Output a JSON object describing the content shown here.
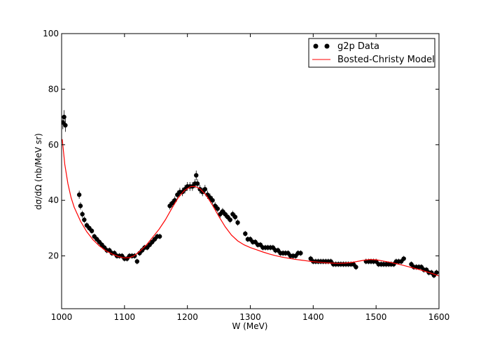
{
  "chart_data": {
    "type": "scatter",
    "xlabel": "W (MeV)",
    "ylabel": "dσ/dΩ (nb/MeV sr)",
    "xlim": [
      1000,
      1600
    ],
    "ylim": [
      1,
      100
    ],
    "x_ticks": [
      1000,
      1100,
      1200,
      1300,
      1400,
      1500,
      1600
    ],
    "y_ticks": [
      20,
      40,
      60,
      80,
      100
    ],
    "grid": false,
    "legend_position": "top-right",
    "series": [
      {
        "name": "g2p Data",
        "style": "points-with-errorbars",
        "color": "#000000",
        "points": [
          [
            1002,
            68
          ],
          [
            1004,
            70
          ],
          [
            1006,
            67
          ],
          [
            1028,
            42
          ],
          [
            1030,
            38
          ],
          [
            1033,
            35
          ],
          [
            1036,
            33
          ],
          [
            1040,
            31
          ],
          [
            1044,
            30
          ],
          [
            1048,
            29
          ],
          [
            1052,
            27
          ],
          [
            1056,
            26
          ],
          [
            1060,
            25
          ],
          [
            1064,
            24
          ],
          [
            1068,
            23
          ],
          [
            1072,
            22
          ],
          [
            1076,
            22
          ],
          [
            1080,
            21
          ],
          [
            1084,
            21
          ],
          [
            1088,
            20
          ],
          [
            1092,
            20
          ],
          [
            1096,
            20
          ],
          [
            1100,
            19
          ],
          [
            1104,
            19
          ],
          [
            1108,
            20
          ],
          [
            1112,
            20
          ],
          [
            1116,
            20
          ],
          [
            1120,
            18
          ],
          [
            1124,
            21
          ],
          [
            1128,
            22
          ],
          [
            1132,
            23
          ],
          [
            1136,
            23
          ],
          [
            1140,
            24
          ],
          [
            1144,
            25
          ],
          [
            1148,
            26
          ],
          [
            1152,
            27
          ],
          [
            1156,
            27
          ],
          [
            1172,
            38
          ],
          [
            1176,
            39
          ],
          [
            1180,
            40
          ],
          [
            1184,
            42
          ],
          [
            1188,
            43
          ],
          [
            1192,
            43
          ],
          [
            1196,
            44
          ],
          [
            1200,
            45
          ],
          [
            1204,
            45
          ],
          [
            1208,
            45
          ],
          [
            1212,
            46
          ],
          [
            1214,
            49
          ],
          [
            1216,
            46
          ],
          [
            1220,
            44
          ],
          [
            1224,
            43
          ],
          [
            1228,
            44
          ],
          [
            1232,
            42
          ],
          [
            1236,
            41
          ],
          [
            1240,
            40
          ],
          [
            1244,
            38
          ],
          [
            1248,
            37
          ],
          [
            1252,
            35
          ],
          [
            1256,
            36
          ],
          [
            1260,
            35
          ],
          [
            1264,
            34
          ],
          [
            1268,
            33
          ],
          [
            1272,
            35
          ],
          [
            1276,
            34
          ],
          [
            1280,
            32
          ],
          [
            1292,
            28
          ],
          [
            1296,
            26
          ],
          [
            1300,
            26
          ],
          [
            1304,
            25
          ],
          [
            1308,
            25
          ],
          [
            1312,
            24
          ],
          [
            1316,
            24
          ],
          [
            1320,
            23
          ],
          [
            1324,
            23
          ],
          [
            1328,
            23
          ],
          [
            1332,
            23
          ],
          [
            1336,
            23
          ],
          [
            1340,
            22
          ],
          [
            1344,
            22
          ],
          [
            1348,
            21
          ],
          [
            1352,
            21
          ],
          [
            1356,
            21
          ],
          [
            1360,
            21
          ],
          [
            1364,
            20
          ],
          [
            1368,
            20
          ],
          [
            1372,
            20
          ],
          [
            1376,
            21
          ],
          [
            1380,
            21
          ],
          [
            1396,
            19
          ],
          [
            1400,
            18
          ],
          [
            1404,
            18
          ],
          [
            1408,
            18
          ],
          [
            1412,
            18
          ],
          [
            1416,
            18
          ],
          [
            1420,
            18
          ],
          [
            1424,
            18
          ],
          [
            1428,
            18
          ],
          [
            1432,
            17
          ],
          [
            1436,
            17
          ],
          [
            1440,
            17
          ],
          [
            1444,
            17
          ],
          [
            1448,
            17
          ],
          [
            1452,
            17
          ],
          [
            1456,
            17
          ],
          [
            1460,
            17
          ],
          [
            1464,
            17
          ],
          [
            1468,
            16
          ],
          [
            1484,
            18
          ],
          [
            1488,
            18
          ],
          [
            1492,
            18
          ],
          [
            1496,
            18
          ],
          [
            1500,
            18
          ],
          [
            1504,
            17
          ],
          [
            1508,
            17
          ],
          [
            1512,
            17
          ],
          [
            1516,
            17
          ],
          [
            1520,
            17
          ],
          [
            1524,
            17
          ],
          [
            1528,
            17
          ],
          [
            1532,
            18
          ],
          [
            1536,
            18
          ],
          [
            1540,
            18
          ],
          [
            1544,
            19
          ],
          [
            1556,
            17
          ],
          [
            1560,
            16
          ],
          [
            1564,
            16
          ],
          [
            1568,
            16
          ],
          [
            1572,
            16
          ],
          [
            1576,
            15
          ],
          [
            1580,
            15
          ],
          [
            1584,
            14
          ],
          [
            1588,
            14
          ],
          [
            1592,
            13
          ],
          [
            1596,
            14
          ]
        ]
      },
      {
        "name": "Bosted-Christy Model",
        "style": "line",
        "color": "#ff0000",
        "points": [
          [
            1001,
            62
          ],
          [
            1005,
            53
          ],
          [
            1010,
            46
          ],
          [
            1015,
            41
          ],
          [
            1020,
            37.5
          ],
          [
            1030,
            32.5
          ],
          [
            1040,
            28.7
          ],
          [
            1050,
            25.8
          ],
          [
            1060,
            23.6
          ],
          [
            1070,
            21.9
          ],
          [
            1080,
            20.7
          ],
          [
            1090,
            19.8
          ],
          [
            1100,
            19.3
          ],
          [
            1108,
            19.4
          ],
          [
            1115,
            20.0
          ],
          [
            1125,
            21.8
          ],
          [
            1135,
            24.0
          ],
          [
            1145,
            26.8
          ],
          [
            1155,
            29.6
          ],
          [
            1165,
            33.0
          ],
          [
            1175,
            37.0
          ],
          [
            1185,
            40.8
          ],
          [
            1195,
            43.5
          ],
          [
            1205,
            44.9
          ],
          [
            1212,
            45.0
          ],
          [
            1220,
            44.2
          ],
          [
            1230,
            41.8
          ],
          [
            1240,
            38.2
          ],
          [
            1250,
            34.2
          ],
          [
            1260,
            30.5
          ],
          [
            1270,
            27.5
          ],
          [
            1280,
            25.4
          ],
          [
            1290,
            24.0
          ],
          [
            1300,
            23.0
          ],
          [
            1310,
            22.2
          ],
          [
            1320,
            21.4
          ],
          [
            1330,
            20.7
          ],
          [
            1340,
            20.1
          ],
          [
            1350,
            19.6
          ],
          [
            1360,
            19.2
          ],
          [
            1370,
            18.8
          ],
          [
            1380,
            18.5
          ],
          [
            1390,
            18.2
          ],
          [
            1400,
            17.9
          ],
          [
            1410,
            17.7
          ],
          [
            1420,
            17.5
          ],
          [
            1430,
            17.4
          ],
          [
            1440,
            17.3
          ],
          [
            1450,
            17.4
          ],
          [
            1460,
            17.6
          ],
          [
            1470,
            18.0
          ],
          [
            1480,
            18.4
          ],
          [
            1490,
            18.7
          ],
          [
            1500,
            18.6
          ],
          [
            1510,
            18.2
          ],
          [
            1520,
            17.8
          ],
          [
            1530,
            17.3
          ],
          [
            1540,
            16.8
          ],
          [
            1550,
            16.2
          ],
          [
            1560,
            15.6
          ],
          [
            1570,
            15.0
          ],
          [
            1580,
            14.3
          ],
          [
            1590,
            13.6
          ],
          [
            1600,
            12.8
          ]
        ]
      }
    ]
  }
}
